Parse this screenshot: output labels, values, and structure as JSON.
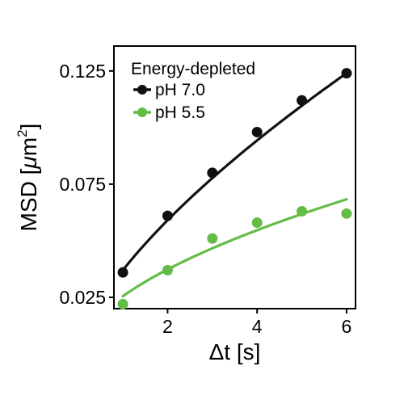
{
  "chart_data": {
    "type": "scatter",
    "xlabel": "Δt [s]",
    "ylabel_main": "MSD [",
    "ylabel_mu": "μ",
    "ylabel_unit": "m",
    "ylabel_sup": "2",
    "ylabel_close": "]",
    "xlim": [
      0.8,
      6.2
    ],
    "ylim": [
      0.02,
      0.136
    ],
    "xticks": [
      2,
      4,
      6
    ],
    "xtick_labels": [
      "2",
      "4",
      "6"
    ],
    "yticks": [
      0.025,
      0.075,
      0.125
    ],
    "ytick_labels": [
      "0.025",
      "0.075",
      "0.125"
    ],
    "grid": false,
    "legend_title": "Energy-depleted",
    "legend_position": "top-left",
    "series": [
      {
        "name": "pH 7.0",
        "color": "#111111",
        "x": [
          1,
          2,
          3,
          4,
          5,
          6
        ],
        "y": [
          0.036,
          0.061,
          0.08,
          0.098,
          0.112,
          0.124
        ],
        "fit": {
          "a": 0.037,
          "b": 0.675
        }
      },
      {
        "name": "pH 5.5",
        "color": "#63bc46",
        "x": [
          1,
          2,
          3,
          4,
          5,
          6
        ],
        "y": [
          0.022,
          0.037,
          0.051,
          0.058,
          0.063,
          0.062
        ],
        "fit": {
          "a": 0.0255,
          "b": 0.55
        }
      }
    ]
  }
}
